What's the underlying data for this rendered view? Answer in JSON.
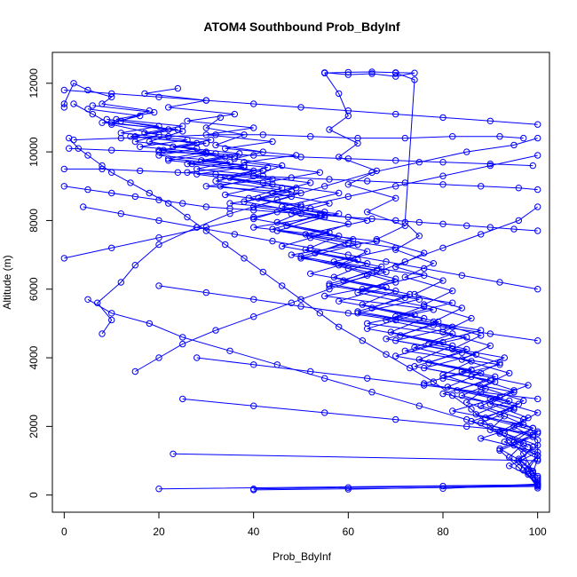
{
  "chart_data": {
    "type": "line",
    "title": "ATOM4 Southbound Prob_BdyInf",
    "xlabel": "Prob_BdyInf",
    "ylabel": "Altitude (m)",
    "xlim": [
      -2.5,
      102.5
    ],
    "ylim": [
      -500,
      12900
    ],
    "xticks": [
      0,
      20,
      40,
      60,
      80,
      100
    ],
    "yticks": [
      0,
      2000,
      4000,
      6000,
      8000,
      10000,
      12000
    ],
    "xtick_labels": [
      "0",
      "20",
      "40",
      "60",
      "80",
      "100"
    ],
    "ytick_labels": [
      "0",
      "2000",
      "4000",
      "6000",
      "8000",
      "10000",
      "12000"
    ],
    "grid": false,
    "legend": "none",
    "color": "#0000ff",
    "marker": "open-circle",
    "series": [
      {
        "x": [
          100,
          98,
          96,
          99,
          93,
          97,
          88,
          95,
          80,
          92,
          72,
          85,
          64,
          78,
          55,
          70,
          60,
          48,
          66,
          40,
          58,
          35,
          50,
          30,
          44,
          26,
          38,
          22,
          30,
          18,
          25,
          12,
          18,
          8,
          10,
          5,
          2,
          0,
          0
        ],
        "y": [
          200,
          600,
          1000,
          1400,
          1800,
          2200,
          2600,
          3000,
          3400,
          3800,
          4200,
          4600,
          5000,
          5400,
          5800,
          6200,
          6600,
          7000,
          7400,
          7800,
          8200,
          8500,
          8800,
          9000,
          9200,
          9400,
          9600,
          9800,
          10000,
          10300,
          10600,
          10900,
          11200,
          11400,
          11600,
          11800,
          12000,
          11400,
          11300
        ]
      },
      {
        "x": [
          100,
          99,
          97,
          94,
          90,
          86,
          82,
          78,
          73,
          68,
          63,
          58,
          54,
          50,
          46,
          42,
          38,
          34,
          30,
          26,
          22,
          18,
          14,
          10,
          8,
          5,
          3,
          1
        ],
        "y": [
          300,
          700,
          1200,
          1600,
          2000,
          2500,
          2900,
          3300,
          3700,
          4100,
          4500,
          4900,
          5300,
          5700,
          6100,
          6500,
          6900,
          7300,
          7700,
          8100,
          8500,
          8800,
          9100,
          9400,
          9600,
          9900,
          10100,
          10400
        ]
      },
      {
        "x": [
          20,
          100,
          96,
          92,
          99,
          88,
          95,
          84,
          91,
          76,
          87,
          70,
          82,
          62,
          75,
          56,
          68,
          50,
          62,
          45,
          55,
          40,
          48,
          33,
          42,
          28,
          35,
          20,
          28,
          15,
          20,
          10,
          6,
          2
        ],
        "y": [
          180,
          300,
          800,
          1300,
          1700,
          2100,
          2500,
          2900,
          3300,
          3700,
          4100,
          4500,
          4900,
          5300,
          5700,
          6100,
          6500,
          6900,
          7300,
          7700,
          8100,
          8400,
          8700,
          9000,
          9300,
          9500,
          9700,
          9900,
          10100,
          10300,
          10500,
          10800,
          11100,
          11400
        ]
      },
      {
        "x": [
          40,
          100,
          98,
          94,
          97,
          90,
          93,
          85,
          89,
          80,
          86,
          74,
          82,
          68,
          76,
          62,
          70,
          58,
          64,
          52,
          60,
          48,
          56,
          44,
          52,
          40,
          46,
          36,
          42,
          32,
          38,
          30,
          33
        ],
        "y": [
          150,
          250,
          700,
          1100,
          1500,
          1900,
          2300,
          2700,
          3100,
          3500,
          3900,
          4300,
          4700,
          5100,
          5500,
          5900,
          6300,
          6700,
          7100,
          7500,
          7900,
          8200,
          8500,
          8800,
          9100,
          9300,
          9600,
          9800,
          10000,
          10200,
          10500,
          10700,
          11000
        ]
      },
      {
        "x": [
          60,
          100,
          99,
          96,
          100,
          92,
          98,
          90,
          95,
          86,
          92,
          82,
          88,
          78,
          84,
          74,
          80,
          70,
          76,
          66,
          72,
          64,
          70,
          60,
          66,
          58,
          62,
          56,
          60,
          58,
          55
        ],
        "y": [
          170,
          280,
          650,
          1050,
          1450,
          1850,
          2250,
          2650,
          3050,
          3450,
          3850,
          4250,
          4650,
          5050,
          5450,
          5850,
          6250,
          6650,
          7050,
          7450,
          7850,
          8250,
          8650,
          9050,
          9450,
          9850,
          10250,
          10650,
          11050,
          11700,
          12300
        ]
      },
      {
        "x": [
          80,
          100,
          97,
          100,
          95,
          99,
          92,
          97,
          88,
          94,
          84,
          90,
          80,
          86,
          76,
          82,
          72,
          78,
          70,
          75,
          72,
          74,
          70
        ],
        "y": [
          190,
          320,
          720,
          1150,
          1550,
          1950,
          2350,
          2750,
          3150,
          3550,
          3950,
          4350,
          4750,
          5150,
          5550,
          5950,
          6350,
          6750,
          7150,
          7550,
          7950,
          12100,
          12300
        ]
      },
      {
        "x": [
          23,
          100,
          100,
          95,
          100,
          90,
          98,
          84,
          93,
          77,
          88,
          70,
          82,
          63,
          76,
          57,
          70,
          51,
          64,
          46,
          58,
          42,
          54,
          38,
          49,
          34,
          44,
          30,
          40,
          26,
          36,
          22,
          30,
          17,
          24
        ],
        "y": [
          1200,
          1000,
          1600,
          2000,
          2400,
          2800,
          3200,
          3600,
          4000,
          4400,
          4800,
          5200,
          5600,
          6000,
          6400,
          6800,
          7200,
          7600,
          8000,
          8400,
          8800,
          9100,
          9400,
          9700,
          9900,
          10100,
          10300,
          10500,
          10700,
          10900,
          11100,
          11300,
          11500,
          11700,
          11850
        ]
      },
      {
        "x": [
          100,
          94,
          100,
          88,
          97,
          82,
          92,
          76,
          86,
          70,
          80,
          64,
          74,
          58,
          68,
          52,
          62,
          46,
          56,
          40,
          50,
          34,
          44,
          28,
          38,
          22,
          32,
          16,
          26,
          12,
          20,
          9
        ],
        "y": [
          450,
          850,
          1250,
          1650,
          2050,
          2450,
          2850,
          3250,
          3650,
          4050,
          4450,
          4850,
          5250,
          5650,
          6050,
          6450,
          6850,
          7250,
          7650,
          8050,
          8450,
          8750,
          9050,
          9350,
          9550,
          9750,
          9950,
          10150,
          10350,
          10550,
          10750,
          10950
        ]
      },
      {
        "x": [
          100,
          97,
          92,
          99,
          86,
          95,
          80,
          90,
          74,
          84,
          68,
          78,
          62,
          72,
          56,
          66,
          50,
          60,
          44,
          54,
          38,
          48,
          32,
          42,
          26,
          36,
          20,
          30,
          14,
          24,
          8
        ],
        "y": [
          550,
          950,
          1350,
          1750,
          2150,
          2550,
          2950,
          3350,
          3750,
          4150,
          4550,
          4950,
          5350,
          5750,
          6150,
          6550,
          6950,
          7350,
          7750,
          8150,
          8550,
          8850,
          9150,
          9450,
          9650,
          9850,
          10050,
          10250,
          10450,
          10650,
          10850
        ]
      },
      {
        "x": [
          99,
          100,
          95,
          100,
          89,
          96,
          83,
          91,
          77,
          85,
          71,
          79,
          65,
          73,
          59,
          67,
          53,
          61,
          47,
          55,
          41,
          49,
          35,
          43,
          29,
          37,
          23,
          31,
          17,
          25,
          11,
          19,
          6
        ],
        "y": [
          650,
          1050,
          1450,
          1850,
          2250,
          2650,
          3050,
          3450,
          3850,
          4250,
          4650,
          5050,
          5450,
          5850,
          6250,
          6650,
          7050,
          7450,
          7850,
          8250,
          8650,
          8950,
          9250,
          9550,
          9750,
          9950,
          10150,
          10350,
          10550,
          10750,
          10950,
          11150,
          11350
        ]
      },
      {
        "x": [
          100,
          98,
          100,
          93,
          99,
          87,
          94,
          81,
          88,
          75,
          82,
          69,
          76,
          63,
          70,
          57,
          64,
          51,
          58,
          45,
          52,
          39,
          46,
          33,
          40,
          27,
          34,
          21,
          28,
          15,
          22,
          10,
          16,
          5
        ],
        "y": [
          350,
          750,
          1150,
          1550,
          1950,
          2350,
          2750,
          3150,
          3550,
          3950,
          4350,
          4750,
          5150,
          5550,
          5950,
          6350,
          6750,
          7150,
          7550,
          7950,
          8350,
          8650,
          8950,
          9250,
          9450,
          9650,
          9850,
          10050,
          10250,
          10450,
          10650,
          10850,
          11050,
          11250
        ]
      },
      {
        "x": [
          8,
          10,
          7,
          12,
          15,
          20,
          28,
          35,
          45,
          55,
          65,
          75,
          85,
          95,
          100
        ],
        "y": [
          4700,
          5100,
          5600,
          6200,
          6700,
          7300,
          7800,
          8200,
          8600,
          9000,
          9400,
          9700,
          10000,
          10200,
          10400
        ]
      },
      {
        "x": [
          5,
          10,
          18,
          25,
          35,
          45,
          55,
          65,
          75,
          85,
          92,
          98
        ],
        "y": [
          5700,
          5300,
          5000,
          4600,
          4200,
          3800,
          3400,
          3000,
          2600,
          2200,
          1800,
          1400
        ]
      },
      {
        "x": [
          15,
          20,
          25,
          32,
          40,
          48,
          56,
          64,
          72,
          80,
          88,
          96,
          100
        ],
        "y": [
          3600,
          4000,
          4400,
          4800,
          5200,
          5600,
          6000,
          6400,
          6800,
          7200,
          7600,
          8000,
          8400
        ]
      },
      {
        "x": [
          0,
          5,
          10,
          15,
          20,
          25,
          30,
          35,
          40,
          45,
          50,
          55,
          60,
          65,
          70,
          75,
          80,
          85,
          90,
          95,
          100
        ],
        "y": [
          9000,
          8900,
          8800,
          8700,
          8600,
          8500,
          8400,
          8350,
          8300,
          8250,
          8200,
          8150,
          8100,
          8050,
          8000,
          7950,
          7900,
          7850,
          7800,
          7750,
          7700
        ]
      },
      {
        "x": [
          0,
          8,
          16,
          24,
          32,
          40,
          48,
          56,
          64,
          72,
          80,
          88,
          96,
          100
        ],
        "y": [
          9500,
          9500,
          9450,
          9400,
          9350,
          9300,
          9250,
          9200,
          9150,
          9100,
          9050,
          9000,
          8950,
          8900
        ]
      },
      {
        "x": [
          1,
          10,
          20,
          30,
          40,
          50,
          60,
          70,
          80,
          90,
          99
        ],
        "y": [
          10100,
          10050,
          10000,
          9950,
          9900,
          9850,
          9800,
          9750,
          9700,
          9650,
          9600
        ]
      },
      {
        "x": [
          0,
          10,
          20,
          30,
          40,
          50,
          60,
          70,
          80,
          90,
          100
        ],
        "y": [
          11800,
          11700,
          11600,
          11500,
          11400,
          11300,
          11200,
          11100,
          11000,
          10900,
          10800
        ]
      },
      {
        "x": [
          2,
          12,
          22,
          32,
          42,
          52,
          62,
          72,
          82,
          92,
          97
        ],
        "y": [
          10350,
          10400,
          10450,
          10500,
          10500,
          10450,
          10400,
          10400,
          10450,
          10450,
          10400
        ]
      },
      {
        "x": [
          100,
          90,
          80,
          70,
          60,
          50,
          40,
          30,
          20,
          10,
          0
        ],
        "y": [
          9900,
          9600,
          9300,
          9000,
          8700,
          8400,
          8100,
          7800,
          7500,
          7200,
          6900
        ]
      },
      {
        "x": [
          100,
          92,
          84,
          76,
          68,
          60,
          52,
          44,
          36,
          28,
          20,
          12,
          4
        ],
        "y": [
          6000,
          6200,
          6400,
          6600,
          6800,
          7000,
          7200,
          7400,
          7600,
          7800,
          8000,
          8200,
          8400
        ]
      },
      {
        "x": [
          100,
          90,
          80,
          70,
          60,
          50,
          40,
          30,
          20
        ],
        "y": [
          4500,
          4700,
          4900,
          5100,
          5300,
          5500,
          5700,
          5900,
          6100
        ]
      },
      {
        "x": [
          100,
          88,
          76,
          64,
          52,
          40,
          28
        ],
        "y": [
          2800,
          3000,
          3200,
          3400,
          3600,
          3800,
          4000
        ]
      },
      {
        "x": [
          100,
          85,
          70,
          55,
          40,
          25
        ],
        "y": [
          1800,
          2000,
          2200,
          2400,
          2600,
          2800
        ]
      },
      {
        "x": [
          40,
          60,
          80,
          100,
          100,
          100
        ],
        "y": [
          180,
          220,
          260,
          300,
          400,
          500
        ]
      },
      {
        "x": [
          55,
          60,
          65,
          70,
          74,
          70,
          65,
          60,
          55
        ],
        "y": [
          12300,
          12320,
          12330,
          12310,
          12300,
          12200,
          12280,
          12250,
          12310
        ]
      }
    ]
  }
}
